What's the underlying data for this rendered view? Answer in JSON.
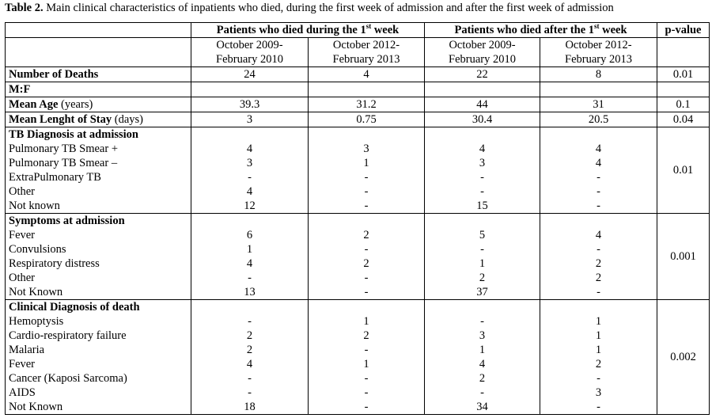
{
  "caption": {
    "label": "Table 2.",
    "text": " Main clinical characteristics of inpatients who died, during the first week of admission and after the first week of admission"
  },
  "header": {
    "group1": "Patients who died during the 1",
    "group1_sup": "st",
    "group1_tail": " week",
    "group2": "Patients who died after the 1",
    "group2_sup": "st",
    "group2_tail": " week",
    "pvalue": "p-value",
    "periods": [
      [
        "October 2009-",
        "February 2010"
      ],
      [
        "October 2012-",
        "February 2013"
      ],
      [
        "October 2009-",
        "February 2010"
      ],
      [
        "October 2012-",
        "February 2013"
      ]
    ]
  },
  "rows": {
    "deaths": {
      "label": "Number of Deaths",
      "values": [
        "24",
        "4",
        "22",
        "8"
      ],
      "p": "0.01"
    },
    "mf": {
      "label": "M:F"
    },
    "age": {
      "label": "Mean Age",
      "unit": " (years)",
      "values": [
        "39.3",
        "31.2",
        "44",
        "31"
      ],
      "p": "0.1"
    },
    "stay": {
      "label": "Mean Lenght of Stay",
      "unit": " (days)",
      "values": [
        "3",
        "0.75",
        "30.4",
        "20.5"
      ],
      "p": "0.04"
    }
  },
  "sections": [
    {
      "title": "TB Diagnosis at admission",
      "p": "0.01",
      "items": [
        {
          "label": "Pulmonary TB Smear +",
          "values": [
            "4",
            "3",
            "4",
            "4"
          ]
        },
        {
          "label": "Pulmonary TB Smear –",
          "values": [
            "3",
            "1",
            "3",
            "4"
          ]
        },
        {
          "label": "ExtraPulmonary TB",
          "values": [
            "-",
            "-",
            "-",
            "-"
          ]
        },
        {
          "label": "Other",
          "values": [
            "4",
            "-",
            "-",
            "-"
          ]
        },
        {
          "label": "Not known",
          "values": [
            "12",
            "-",
            "15",
            "-"
          ]
        }
      ]
    },
    {
      "title": "Symptoms at admission",
      "p": "0.001",
      "items": [
        {
          "label": "Fever",
          "values": [
            "6",
            "2",
            "5",
            "4"
          ]
        },
        {
          "label": "Convulsions",
          "values": [
            "1",
            "-",
            "-",
            "-"
          ]
        },
        {
          "label": "Respiratory distress",
          "values": [
            "4",
            "2",
            "1",
            "2"
          ]
        },
        {
          "label": "Other",
          "values": [
            "-",
            "-",
            "2",
            "2"
          ]
        },
        {
          "label": "Not Known",
          "values": [
            "13",
            "-",
            "37",
            "-"
          ]
        }
      ]
    },
    {
      "title": "Clinical Diagnosis of death",
      "p": "0.002",
      "items": [
        {
          "label": "Hemoptysis",
          "values": [
            "-",
            "1",
            "-",
            "1"
          ]
        },
        {
          "label": "Cardio-respiratory failure",
          "values": [
            "2",
            "2",
            "3",
            "1"
          ]
        },
        {
          "label": "Malaria",
          "values": [
            "2",
            "-",
            "1",
            "1"
          ]
        },
        {
          "label": "Fever",
          "values": [
            "4",
            "1",
            "4",
            "2"
          ]
        },
        {
          "label": "Cancer (Kaposi Sarcoma)",
          "values": [
            "-",
            "-",
            "2",
            "-"
          ]
        },
        {
          "label": "AIDS",
          "values": [
            "-",
            "-",
            "-",
            "3"
          ]
        },
        {
          "label": "Not Known",
          "values": [
            "18",
            "-",
            "34",
            "-"
          ]
        }
      ]
    }
  ]
}
